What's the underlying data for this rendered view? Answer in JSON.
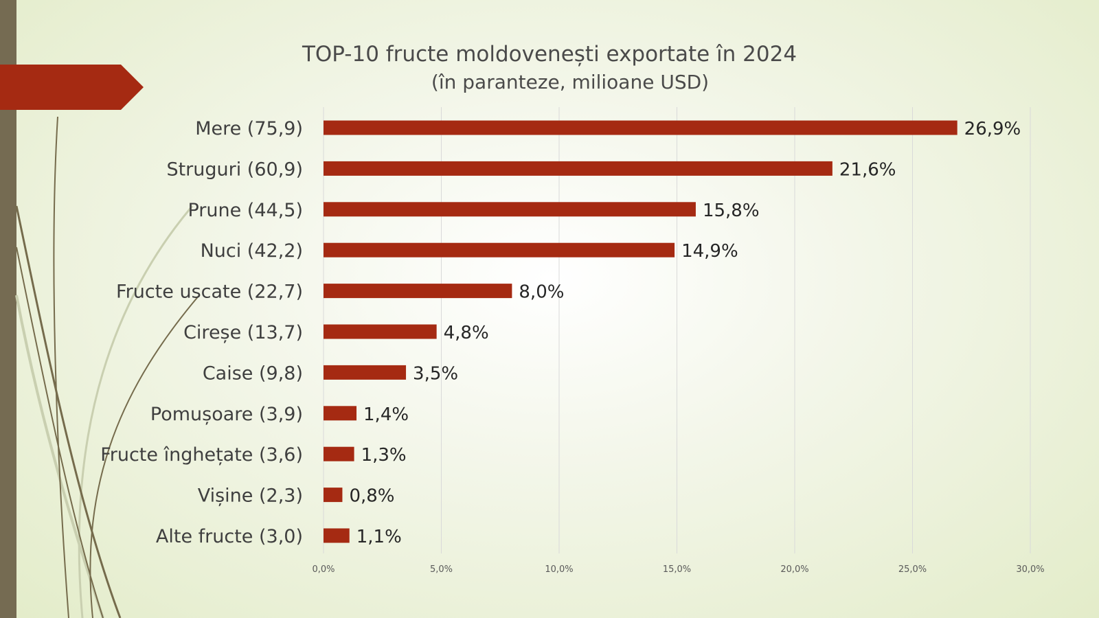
{
  "chart_data": {
    "type": "bar",
    "orientation": "horizontal",
    "title": "TOP-10 fructe moldovenești exportate în 2024",
    "subtitle": "(în paranteze, milioane USD)",
    "categories": [
      "Mere (75,9)",
      "Struguri (60,9)",
      "Prune (44,5)",
      "Nuci (42,2)",
      "Fructe uscate (22,7)",
      "Cireșe (13,7)",
      "Caise (9,8)",
      "Pomușoare (3,9)",
      "Fructe înghețate (3,6)",
      "Vișine (2,3)",
      "Alte fructe (3,0)"
    ],
    "values": [
      26.9,
      21.6,
      15.8,
      14.9,
      8.0,
      4.8,
      3.5,
      1.4,
      1.3,
      0.8,
      1.1
    ],
    "value_labels": [
      "26,9%",
      "21,6%",
      "15,8%",
      "14,9%",
      "8,0%",
      "4,8%",
      "3,5%",
      "1,4%",
      "1,3%",
      "0,8%",
      "1,1%"
    ],
    "xlim": [
      0,
      30
    ],
    "xticks": [
      0,
      5,
      10,
      15,
      20,
      25,
      30
    ],
    "xtick_labels": [
      "0,0%",
      "5,0%",
      "10,0%",
      "15,0%",
      "20,0%",
      "25,0%",
      "30,0%"
    ],
    "grid": true,
    "bar_color": "#a52a12",
    "legend": "none"
  },
  "theme": {
    "accent": "#a52a12",
    "side_bar": "#756b52",
    "stem_color": "#746a4a"
  }
}
